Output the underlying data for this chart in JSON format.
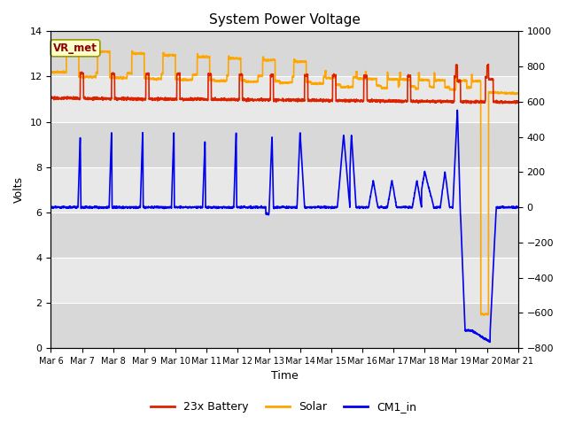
{
  "title": "System Power Voltage",
  "xlabel": "Time",
  "ylabel_left": "Volts",
  "ylim_left": [
    0,
    14
  ],
  "ylim_right": [
    -800,
    1000
  ],
  "yticks_left": [
    0,
    2,
    4,
    6,
    8,
    10,
    12,
    14
  ],
  "yticks_right": [
    -800,
    -600,
    -400,
    -200,
    0,
    200,
    400,
    600,
    800,
    1000
  ],
  "band_colors": [
    "#d8d8d8",
    "#e8e8e8"
  ],
  "grid_color": "#cccccc",
  "annotation_text": "VR_met",
  "annotation_color": "#8B0000",
  "annotation_bg": "#ffffcc",
  "annotation_edge": "#999900",
  "colors": {
    "battery": "#dd2200",
    "solar": "#ffa500",
    "cm1": "#0000ee"
  },
  "legend_labels": [
    "23x Battery",
    "Solar",
    "CM1_in"
  ],
  "x_tick_labels": [
    "Mar 6",
    "Mar 7",
    "Mar 8",
    "Mar 9",
    "Mar 10",
    "Mar 11",
    "Mar 12",
    "Mar 13",
    "Mar 14",
    "Mar 15",
    "Mar 16",
    "Mar 17",
    "Mar 18",
    "Mar 19",
    "Mar 20",
    "Mar 21"
  ],
  "n_days": 15,
  "title_fontsize": 11,
  "lw": 1.2
}
